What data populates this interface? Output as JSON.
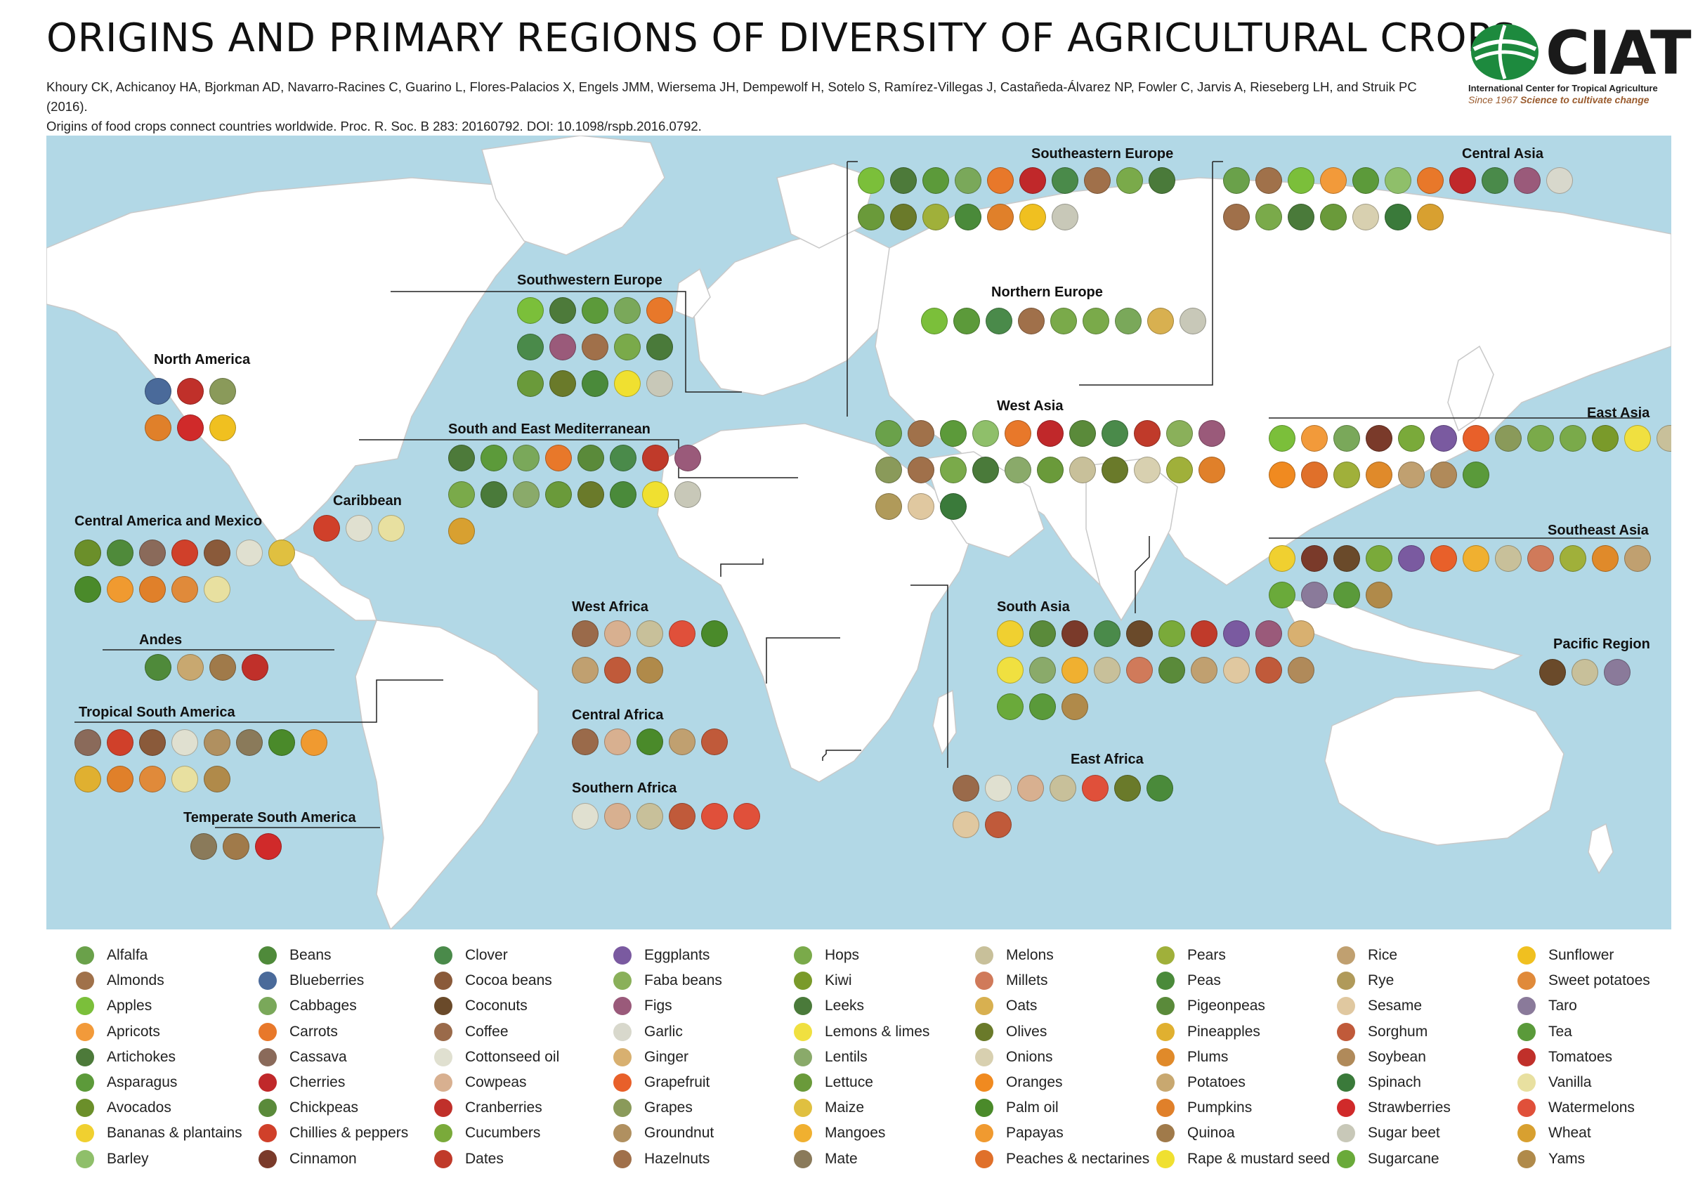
{
  "title": "ORIGINS AND PRIMARY REGIONS OF DIVERSITY OF AGRICULTURAL CROPS",
  "citation": {
    "line1": "Khoury CK, Achicanoy HA, Bjorkman AD, Navarro-Racines C, Guarino L, Flores-Palacios X, Engels JMM, Wiersema JH, Dempewolf H, Sotelo S, Ramírez-Villegas J, Castañeda-Álvarez NP, Fowler C, Jarvis A, Rieseberg LH, and Struik PC (2016).",
    "line2": "Origins of food crops connect countries worldwide. Proc. R. Soc. B 283: 20160792. DOI: 10.1098/rspb.2016.0792."
  },
  "logo": {
    "name": "CIAT",
    "subtitle": "International Center for Tropical Agriculture",
    "tagline_since": "Since 1967",
    "tagline": "Science to cultivate change",
    "color_green": "#1d8a3e"
  },
  "colors": {
    "ocean": "#b2d8e6",
    "land": "#ffffff",
    "border": "#c9c9c9"
  },
  "regions": {
    "north_america": "North America",
    "caribbean": "Caribbean",
    "central_america_mexico": "Central America and Mexico",
    "andes": "Andes",
    "tropical_south_america": "Tropical South America",
    "temperate_south_america": "Temperate South America",
    "southwestern_europe": "Southwestern Europe",
    "south_east_mediterranean": "South and East Mediterranean",
    "west_africa": "West Africa",
    "central_africa": "Central Africa",
    "southern_africa": "Southern Africa",
    "east_africa": "East Africa",
    "southeastern_europe": "Southeastern Europe",
    "northern_europe": "Northern Europe",
    "west_asia": "West Asia",
    "central_asia": "Central Asia",
    "south_asia": "South Asia",
    "east_asia": "East Asia",
    "southeast_asia": "Southeast Asia",
    "pacific_region": "Pacific Region"
  },
  "legend": [
    [
      {
        "label": "Alfalfa",
        "color": "#6aa14a"
      },
      {
        "label": "Almonds",
        "color": "#a0714a"
      },
      {
        "label": "Apples",
        "color": "#7bbf3a"
      },
      {
        "label": "Apricots",
        "color": "#f29a3a"
      },
      {
        "label": "Artichokes",
        "color": "#4d7a3a"
      },
      {
        "label": "Asparagus",
        "color": "#5c9a3a"
      },
      {
        "label": "Avocados",
        "color": "#6b8f2a"
      },
      {
        "label": "Bananas & plantains",
        "color": "#f0d030"
      },
      {
        "label": "Barley",
        "color": "#8fbf6a"
      }
    ],
    [
      {
        "label": "Beans",
        "color": "#4f8a3a"
      },
      {
        "label": "Blueberries",
        "color": "#4a6a9a"
      },
      {
        "label": "Cabbages",
        "color": "#7aa85a"
      },
      {
        "label": "Carrots",
        "color": "#e8782a"
      },
      {
        "label": "Cassava",
        "color": "#8a6a5a"
      },
      {
        "label": "Cherries",
        "color": "#c0282a"
      },
      {
        "label": "Chickpeas",
        "color": "#5a8a3a"
      },
      {
        "label": "Chillies & peppers",
        "color": "#d0402a"
      },
      {
        "label": "Cinnamon",
        "color": "#7a3a2a"
      }
    ],
    [
      {
        "label": "Clover",
        "color": "#4a8a4a"
      },
      {
        "label": "Cocoa beans",
        "color": "#8a5a3a"
      },
      {
        "label": "Coconuts",
        "color": "#6a4a2a"
      },
      {
        "label": "Coffee",
        "color": "#9a6a4a"
      },
      {
        "label": "Cottonseed oil",
        "color": "#e0e0d0"
      },
      {
        "label": "Cowpeas",
        "color": "#d8b090"
      },
      {
        "label": "Cranberries",
        "color": "#c0302a"
      },
      {
        "label": "Cucumbers",
        "color": "#7aaa3a"
      },
      {
        "label": "Dates",
        "color": "#c03a2a"
      }
    ],
    [
      {
        "label": "Eggplants",
        "color": "#7a5aa0"
      },
      {
        "label": "Faba beans",
        "color": "#8ab05a"
      },
      {
        "label": "Figs",
        "color": "#9a5a7a"
      },
      {
        "label": "Garlic",
        "color": "#d8d8cc"
      },
      {
        "label": "Ginger",
        "color": "#d8b070"
      },
      {
        "label": "Grapefruit",
        "color": "#e8602a"
      },
      {
        "label": "Grapes",
        "color": "#8a9a5a"
      },
      {
        "label": "Groundnut",
        "color": "#b09060"
      },
      {
        "label": "Hazelnuts",
        "color": "#a0704a"
      }
    ],
    [
      {
        "label": "Hops",
        "color": "#7aaa4a"
      },
      {
        "label": "Kiwi",
        "color": "#7a9a2a"
      },
      {
        "label": "Leeks",
        "color": "#4a7a3a"
      },
      {
        "label": "Lemons & limes",
        "color": "#f0e040"
      },
      {
        "label": "Lentils",
        "color": "#8aaa6a"
      },
      {
        "label": "Lettuce",
        "color": "#6a9a3a"
      },
      {
        "label": "Maize",
        "color": "#e0c040"
      },
      {
        "label": "Mangoes",
        "color": "#f0b030"
      },
      {
        "label": "Mate",
        "color": "#8a7a5a"
      }
    ],
    [
      {
        "label": "Melons",
        "color": "#c8c09a"
      },
      {
        "label": "Millets",
        "color": "#d07a5a"
      },
      {
        "label": "Oats",
        "color": "#d8b050"
      },
      {
        "label": "Olives",
        "color": "#6a7a2a"
      },
      {
        "label": "Onions",
        "color": "#d8d0b0"
      },
      {
        "label": "Oranges",
        "color": "#f08a20"
      },
      {
        "label": "Palm oil",
        "color": "#4a8a2a"
      },
      {
        "label": "Papayas",
        "color": "#f09a30"
      },
      {
        "label": "Peaches & nectarines",
        "color": "#e0702a"
      }
    ],
    [
      {
        "label": "Pears",
        "color": "#a0b03a"
      },
      {
        "label": "Peas",
        "color": "#4a8a3a"
      },
      {
        "label": "Pigeonpeas",
        "color": "#5a8a3a"
      },
      {
        "label": "Pineapples",
        "color": "#e0b030"
      },
      {
        "label": "Plums",
        "color": "#e08a2a"
      },
      {
        "label": "Potatoes",
        "color": "#c8a870"
      },
      {
        "label": "Pumpkins",
        "color": "#e0802a"
      },
      {
        "label": "Quinoa",
        "color": "#a07a4a"
      },
      {
        "label": "Rape & mustard seed",
        "color": "#f0e030"
      }
    ],
    [
      {
        "label": "Rice",
        "color": "#c0a070"
      },
      {
        "label": "Rye",
        "color": "#b09a5a"
      },
      {
        "label": "Sesame",
        "color": "#e0c8a0"
      },
      {
        "label": "Sorghum",
        "color": "#c05a3a"
      },
      {
        "label": "Soybean",
        "color": "#b08a5a"
      },
      {
        "label": "Spinach",
        "color": "#3a7a3a"
      },
      {
        "label": "Strawberries",
        "color": "#d02a2a"
      },
      {
        "label": "Sugar beet",
        "color": "#c8c8b8"
      },
      {
        "label": "Sugarcane",
        "color": "#6aaa3a"
      }
    ],
    [
      {
        "label": "Sunflower",
        "color": "#f0c020"
      },
      {
        "label": "Sweet potatoes",
        "color": "#e08a3a"
      },
      {
        "label": "Taro",
        "color": "#8a7a9a"
      },
      {
        "label": "Tea",
        "color": "#5a9a3a"
      },
      {
        "label": "Tomatoes",
        "color": "#c0302a"
      },
      {
        "label": "Vanilla",
        "color": "#e8e0a0"
      },
      {
        "label": "Watermelons",
        "color": "#e0503a"
      },
      {
        "label": "Wheat",
        "color": "#d8a030"
      },
      {
        "label": "Yams",
        "color": "#b08a4a"
      }
    ]
  ],
  "region_icons": {
    "north_america": [
      "Blueberries",
      "Cranberries",
      "Grapes",
      "Pumpkins",
      "Strawberries",
      "Sunflower"
    ],
    "caribbean": [
      "Chillies & peppers",
      "Cottonseed oil",
      "Vanilla"
    ],
    "central_america_mexico": [
      "Avocados",
      "Beans",
      "Cassava",
      "Chillies & peppers",
      "Cocoa beans",
      "Cottonseed oil",
      "Maize",
      "Palm oil",
      "Papayas",
      "Pumpkins",
      "Sweet potatoes",
      "Vanilla"
    ],
    "andes": [
      "Beans",
      "Potatoes",
      "Quinoa",
      "Tomatoes"
    ],
    "tropical_south_america": [
      "Cassava",
      "Chillies & peppers",
      "Cocoa beans",
      "Cottonseed oil",
      "Groundnut",
      "Mate",
      "Palm oil",
      "Papayas",
      "Pineapples",
      "Pumpkins",
      "Sweet potatoes",
      "Vanilla",
      "Yams"
    ],
    "temperate_south_america": [
      "Mate",
      "Quinoa",
      "Strawberries"
    ],
    "southwestern_europe": [
      "Apples",
      "Artichokes",
      "Asparagus",
      "Cabbages",
      "Carrots",
      "Clover",
      "Figs",
      "Hazelnuts",
      "Hops",
      "Leeks",
      "Lettuce",
      "Olives",
      "Peas",
      "Rape & mustard seed",
      "Sugar beet"
    ],
    "south_east_mediterranean": [
      "Artichokes",
      "Asparagus",
      "Cabbages",
      "Carrots",
      "Chickpeas",
      "Clover",
      "Dates",
      "Figs",
      "Hops",
      "Leeks",
      "Lentils",
      "Lettuce",
      "Olives",
      "Peas",
      "Rape & mustard seed",
      "Sugar beet",
      "Wheat"
    ],
    "west_africa": [
      "Coffee",
      "Cowpeas",
      "Melons",
      "Watermelons",
      "Palm oil",
      "Rice",
      "Sorghum",
      "Yams"
    ],
    "central_africa": [
      "Coffee",
      "Cowpeas",
      "Palm oil",
      "Rice",
      "Sorghum"
    ],
    "southern_africa": [
      "Cottonseed oil",
      "Cowpeas",
      "Melons",
      "Sorghum",
      "Watermelons",
      "Watermelons"
    ],
    "east_africa": [
      "Coffee",
      "Cottonseed oil",
      "Cowpeas",
      "Melons",
      "Watermelons",
      "Olives",
      "Peas",
      "Sesame",
      "Sorghum"
    ],
    "southeastern_europe": [
      "Apples",
      "Artichokes",
      "Asparagus",
      "Cabbages",
      "Carrots",
      "Cherries",
      "Clover",
      "Hazelnuts",
      "Hops",
      "Leeks",
      "Lettuce",
      "Olives",
      "Pears",
      "Peas",
      "Pumpkins",
      "Sunflower",
      "Sugar beet"
    ],
    "northern_europe": [
      "Apples",
      "Asparagus",
      "Clover",
      "Hazelnuts",
      "Hops",
      "Hops",
      "Cabbages",
      "Oats",
      "Sugar beet"
    ],
    "west_asia": [
      "Alfalfa",
      "Almonds",
      "Asparagus",
      "Barley",
      "Carrots",
      "Cherries",
      "Chickpeas",
      "Clover",
      "Dates",
      "Faba beans",
      "Figs",
      "Grapes",
      "Hazelnuts",
      "Hops",
      "Leeks",
      "Lentils",
      "Lettuce",
      "Melons",
      "Olives",
      "Onions",
      "Pears",
      "Pumpkins",
      "Rye",
      "Sesame",
      "Spinach"
    ],
    "central_asia": [
      "Alfalfa",
      "Almonds",
      "Apples",
      "Apricots",
      "Asparagus",
      "Barley",
      "Carrots",
      "Cherries",
      "Clover",
      "Figs",
      "Garlic",
      "Hazelnuts",
      "Hops",
      "Leeks",
      "Lettuce",
      "Onions",
      "Spinach",
      "Wheat"
    ],
    "south_asia": [
      "Bananas & plantains",
      "Chickpeas",
      "Cinnamon",
      "Clover",
      "Coconuts",
      "Cucumbers",
      "Dates",
      "Eggplants",
      "Figs",
      "Ginger",
      "Lemons & limes",
      "Lentils",
      "Mangoes",
      "Melons",
      "Millets",
      "Pigeonpeas",
      "Rice",
      "Sesame",
      "Sorghum",
      "Soybean",
      "Sugarcane",
      "Tea",
      "Yams"
    ],
    "east_asia": [
      "Apples",
      "Apricots",
      "Cabbages",
      "Cinnamon",
      "Cucumbers",
      "Eggplants",
      "Grapefruit",
      "Grapes",
      "Hops",
      "Hops",
      "Kiwi",
      "Lemons & limes",
      "Melons",
      "Millets",
      "Oranges",
      "Peaches & nectarines",
      "Pears",
      "Plums",
      "Rice",
      "Soybean",
      "Tea"
    ],
    "southeast_asia": [
      "Bananas & plantains",
      "Cinnamon",
      "Coconuts",
      "Cucumbers",
      "Eggplants",
      "Grapefruit",
      "Mangoes",
      "Melons",
      "Millets",
      "Pears",
      "Plums",
      "Rice",
      "Sugarcane",
      "Taro",
      "Tea",
      "Yams"
    ],
    "pacific_region": [
      "Coconuts",
      "Melons",
      "Taro"
    ]
  }
}
